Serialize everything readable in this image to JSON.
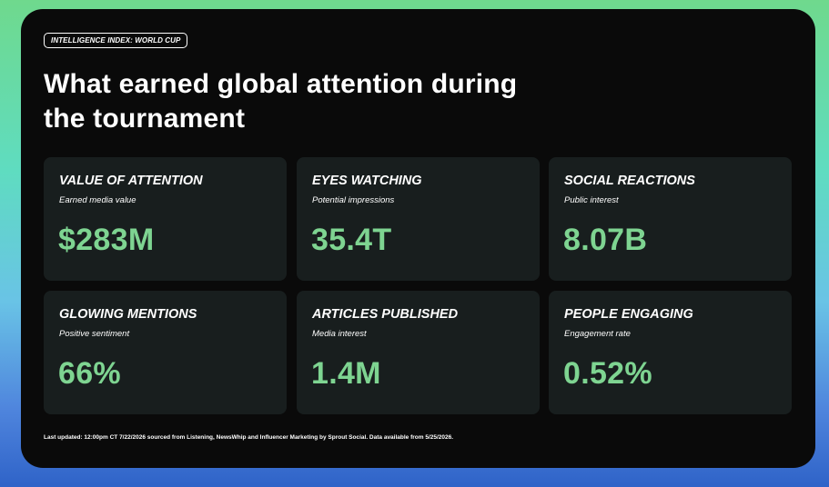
{
  "tag": "INTELLIGENCE INDEX: WORLD CUP",
  "headline_line1": "What earned global attention during",
  "headline_line2": "the tournament",
  "metrics": [
    {
      "title": "VALUE OF ATTENTION",
      "subtitle": "Earned media value",
      "value": "$283M"
    },
    {
      "title": "EYES WATCHING",
      "subtitle": "Potential impressions",
      "value": "35.4T"
    },
    {
      "title": "SOCIAL REACTIONS",
      "subtitle": "Public interest",
      "value": "8.07B"
    },
    {
      "title": "GLOWING MENTIONS",
      "subtitle": "Positive sentiment",
      "value": "66%"
    },
    {
      "title": "ARTICLES PUBLISHED",
      "subtitle": "Media interest",
      "value": "1.4M"
    },
    {
      "title": "PEOPLE ENGAGING",
      "subtitle": "Engagement rate",
      "value": "0.52%"
    }
  ],
  "footer": "Last updated: 12:00pm CT 7/22/2026 sourced from Listening, NewsWhip and Influencer Marketing by Sprout Social. Data available from 5/25/2026.",
  "colors": {
    "accent": "#7ed491",
    "card_background": "#0a0a0a",
    "tile_background": "#181e1e"
  }
}
